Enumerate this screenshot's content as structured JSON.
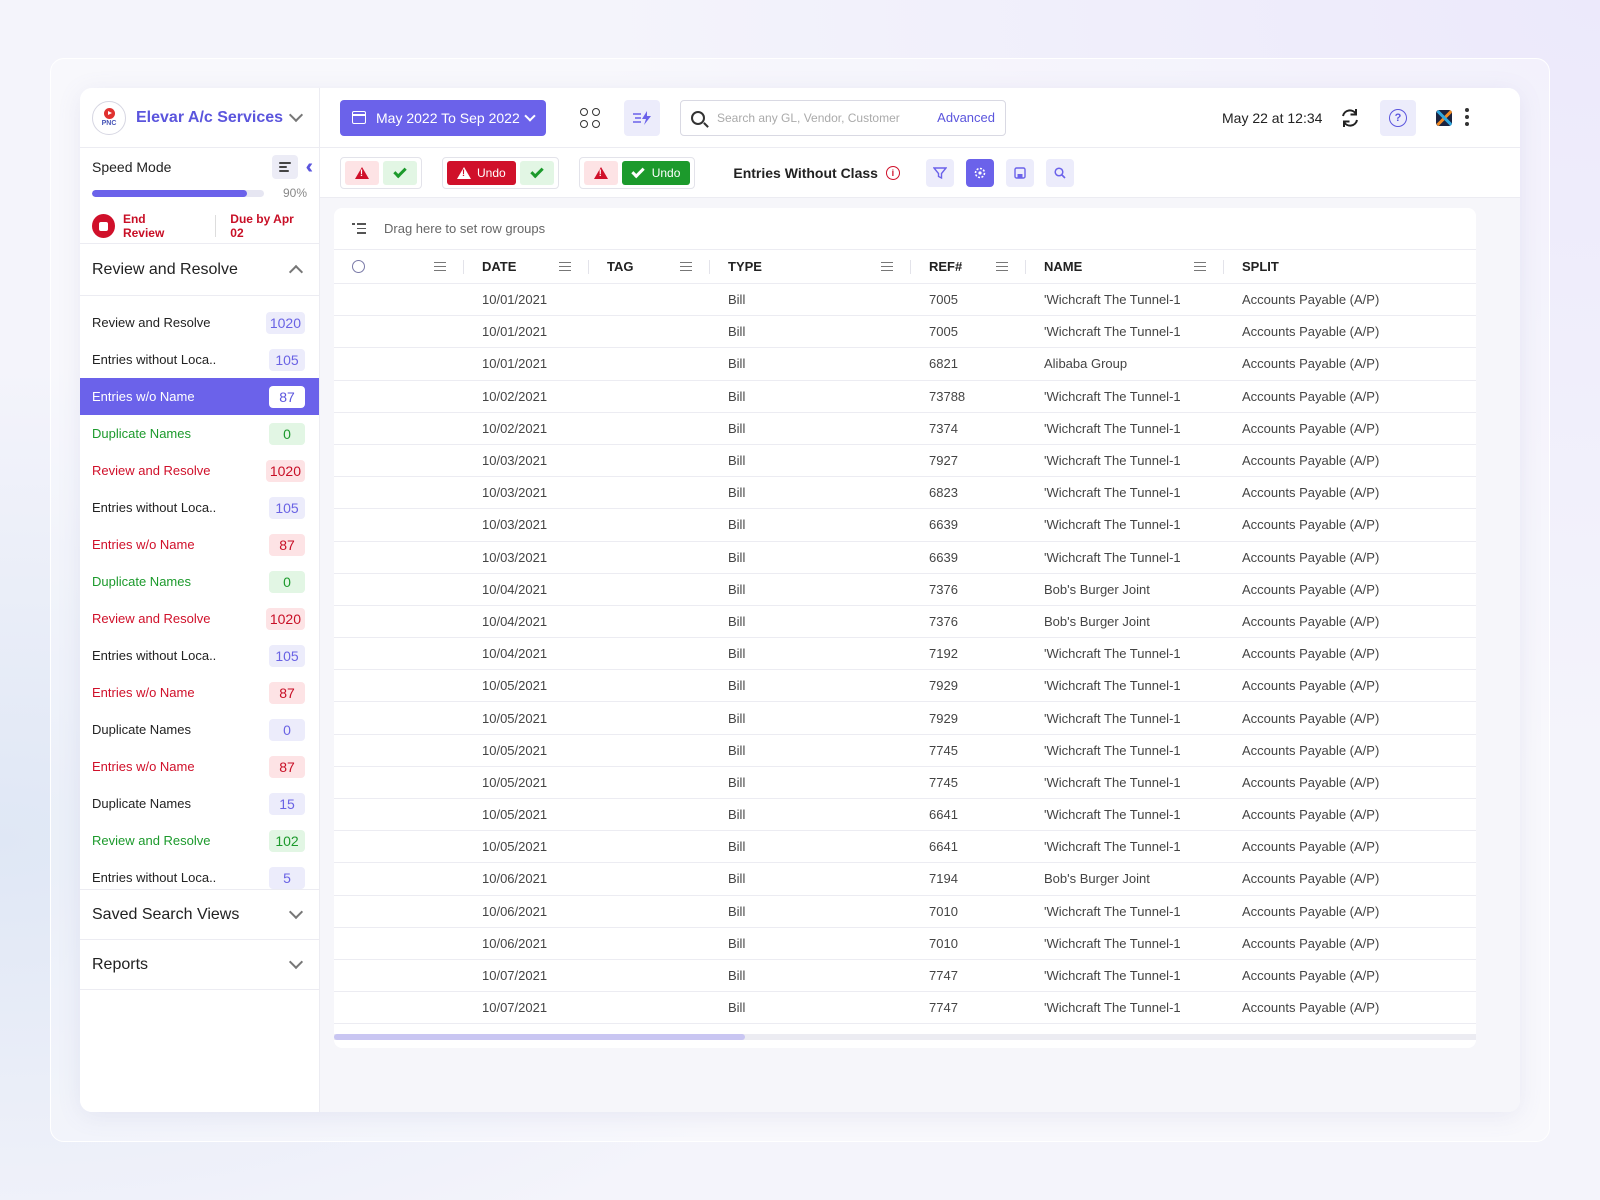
{
  "brand": {
    "name": "Elevar A/c Services",
    "logo_text": "PNC"
  },
  "speed_mode": {
    "title": "Speed Mode",
    "progress": 0.9,
    "progress_label": "90%",
    "end_review": "End Review",
    "due": "Due by Apr 02"
  },
  "section_review": {
    "title": "Review and Resolve"
  },
  "sidebar_items": [
    {
      "label": "Review and Resolve",
      "count": "1020",
      "kind": "default"
    },
    {
      "label": "Entries without Loca..",
      "count": "105",
      "kind": "default"
    },
    {
      "label": "Entries w/o Name",
      "count": "87",
      "kind": "active"
    },
    {
      "label": "Duplicate Names",
      "count": "0",
      "kind": "green"
    },
    {
      "label": "Review and Resolve",
      "count": "1020",
      "kind": "red"
    },
    {
      "label": "Entries without Loca..",
      "count": "105",
      "kind": "default"
    },
    {
      "label": "Entries w/o Name",
      "count": "87",
      "kind": "red"
    },
    {
      "label": "Duplicate Names",
      "count": "0",
      "kind": "green"
    },
    {
      "label": "Review and Resolve",
      "count": "1020",
      "kind": "red"
    },
    {
      "label": "Entries without Loca..",
      "count": "105",
      "kind": "default"
    },
    {
      "label": "Entries w/o Name",
      "count": "87",
      "kind": "red"
    },
    {
      "label": "Duplicate Names",
      "count": "0",
      "kind": "default"
    },
    {
      "label": "Entries w/o Name",
      "count": "87",
      "kind": "red"
    },
    {
      "label": "Duplicate Names",
      "count": "15",
      "kind": "default"
    },
    {
      "label": "Review and Resolve",
      "count": "102",
      "kind": "green"
    },
    {
      "label": "Entries without Loca..",
      "count": "5",
      "kind": "default"
    }
  ],
  "saved_views": {
    "title": "Saved Search Views"
  },
  "reports": {
    "title": "Reports"
  },
  "topbar": {
    "date_range": "May 2022 To Sep 2022",
    "search_placeholder": "Search any GL, Vendor, Customer",
    "advanced": "Advanced",
    "timestamp": "May 22 at 12:34",
    "help": "?"
  },
  "toolbar": {
    "undo1": "Undo",
    "undo2": "Undo",
    "title": "Entries Without Class",
    "info": "i"
  },
  "grid": {
    "group_placeholder": "Drag here to set row groups",
    "columns": [
      "",
      "DATE",
      "TAG",
      "TYPE",
      "REF#",
      "NAME",
      "SPLIT"
    ],
    "rows": [
      [
        "10/01/2021",
        "",
        "Bill",
        "7005",
        "'Wichcraft The Tunnel-1",
        "Accounts Payable (A/P)"
      ],
      [
        "10/01/2021",
        "",
        "Bill",
        "7005",
        "'Wichcraft The Tunnel-1",
        "Accounts Payable (A/P)"
      ],
      [
        "10/01/2021",
        "",
        "Bill",
        "6821",
        "Alibaba Group",
        "Accounts Payable (A/P)"
      ],
      [
        "10/02/2021",
        "",
        "Bill",
        "73788",
        "'Wichcraft The Tunnel-1",
        "Accounts Payable (A/P)"
      ],
      [
        "10/02/2021",
        "",
        "Bill",
        "7374",
        "'Wichcraft The Tunnel-1",
        "Accounts Payable (A/P)"
      ],
      [
        "10/03/2021",
        "",
        "Bill",
        "7927",
        "'Wichcraft The Tunnel-1",
        "Accounts Payable (A/P)"
      ],
      [
        "10/03/2021",
        "",
        "Bill",
        "6823",
        "'Wichcraft The Tunnel-1",
        "Accounts Payable (A/P)"
      ],
      [
        "10/03/2021",
        "",
        "Bill",
        "6639",
        "'Wichcraft The Tunnel-1",
        "Accounts Payable (A/P)"
      ],
      [
        "10/03/2021",
        "",
        "Bill",
        "6639",
        "'Wichcraft The Tunnel-1",
        "Accounts Payable (A/P)"
      ],
      [
        "10/04/2021",
        "",
        "Bill",
        "7376",
        "Bob's Burger Joint",
        "Accounts Payable (A/P)"
      ],
      [
        "10/04/2021",
        "",
        "Bill",
        "7376",
        "Bob's Burger Joint",
        "Accounts Payable (A/P)"
      ],
      [
        "10/04/2021",
        "",
        "Bill",
        "7192",
        "'Wichcraft The Tunnel-1",
        "Accounts Payable (A/P)"
      ],
      [
        "10/05/2021",
        "",
        "Bill",
        "7929",
        "'Wichcraft The Tunnel-1",
        "Accounts Payable (A/P)"
      ],
      [
        "10/05/2021",
        "",
        "Bill",
        "7929",
        "'Wichcraft The Tunnel-1",
        "Accounts Payable (A/P)"
      ],
      [
        "10/05/2021",
        "",
        "Bill",
        "7745",
        "'Wichcraft The Tunnel-1",
        "Accounts Payable (A/P)"
      ],
      [
        "10/05/2021",
        "",
        "Bill",
        "7745",
        "'Wichcraft The Tunnel-1",
        "Accounts Payable (A/P)"
      ],
      [
        "10/05/2021",
        "",
        "Bill",
        "6641",
        "'Wichcraft The Tunnel-1",
        "Accounts Payable (A/P)"
      ],
      [
        "10/05/2021",
        "",
        "Bill",
        "6641",
        "'Wichcraft The Tunnel-1",
        "Accounts Payable (A/P)"
      ],
      [
        "10/06/2021",
        "",
        "Bill",
        "7194",
        "Bob's Burger Joint",
        "Accounts Payable (A/P)"
      ],
      [
        "10/06/2021",
        "",
        "Bill",
        "7010",
        "'Wichcraft The Tunnel-1",
        "Accounts Payable (A/P)"
      ],
      [
        "10/06/2021",
        "",
        "Bill",
        "7010",
        "'Wichcraft The Tunnel-1",
        "Accounts Payable (A/P)"
      ],
      [
        "10/07/2021",
        "",
        "Bill",
        "7747",
        "'Wichcraft The Tunnel-1",
        "Accounts Payable (A/P)"
      ],
      [
        "10/07/2021",
        "",
        "Bill",
        "7747",
        "'Wichcraft The Tunnel-1",
        "Accounts Payable (A/P)"
      ]
    ],
    "scroll_position": 0.36
  }
}
